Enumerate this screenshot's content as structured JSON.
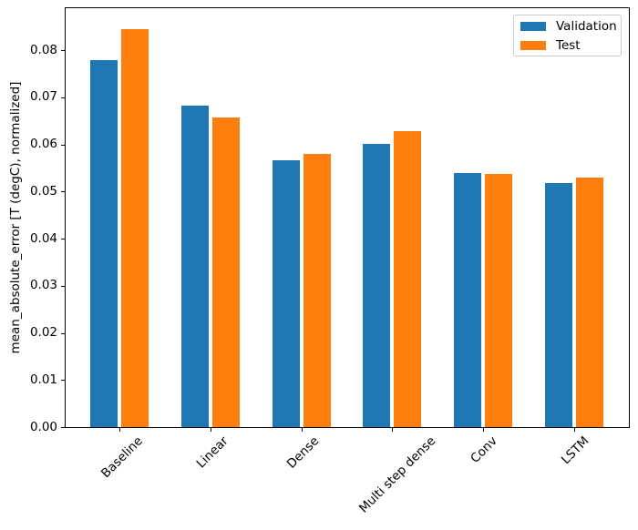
{
  "chart_data": {
    "type": "bar",
    "title": "",
    "xlabel": "",
    "ylabel": "mean_absolute_error [T (degC), normalized]",
    "categories": [
      "Baseline",
      "Linear",
      "Dense",
      "Multi step dense",
      "Conv",
      "LSTM"
    ],
    "series": [
      {
        "name": "Validation",
        "color": "#1f77b4",
        "values": [
          0.0778,
          0.0683,
          0.0567,
          0.0601,
          0.054,
          0.0518
        ]
      },
      {
        "name": "Test",
        "color": "#ff7f0e",
        "values": [
          0.0844,
          0.0658,
          0.0579,
          0.0629,
          0.0538,
          0.053
        ]
      }
    ],
    "ylim": [
      0,
      0.0891
    ],
    "yticks": [
      0.0,
      0.01,
      0.02,
      0.03,
      0.04,
      0.05,
      0.06,
      0.07,
      0.08
    ],
    "ytick_labels": [
      "0.00",
      "0.01",
      "0.02",
      "0.03",
      "0.04",
      "0.05",
      "0.06",
      "0.07",
      "0.08"
    ],
    "xtick_rotation_deg": 45,
    "bar_width": 0.3,
    "bar_offset": 0.17,
    "grid": false,
    "legend": {
      "position": "upper right",
      "entries": [
        "Validation",
        "Test"
      ]
    },
    "axis_color": "#000000",
    "background_color": "#ffffff"
  }
}
